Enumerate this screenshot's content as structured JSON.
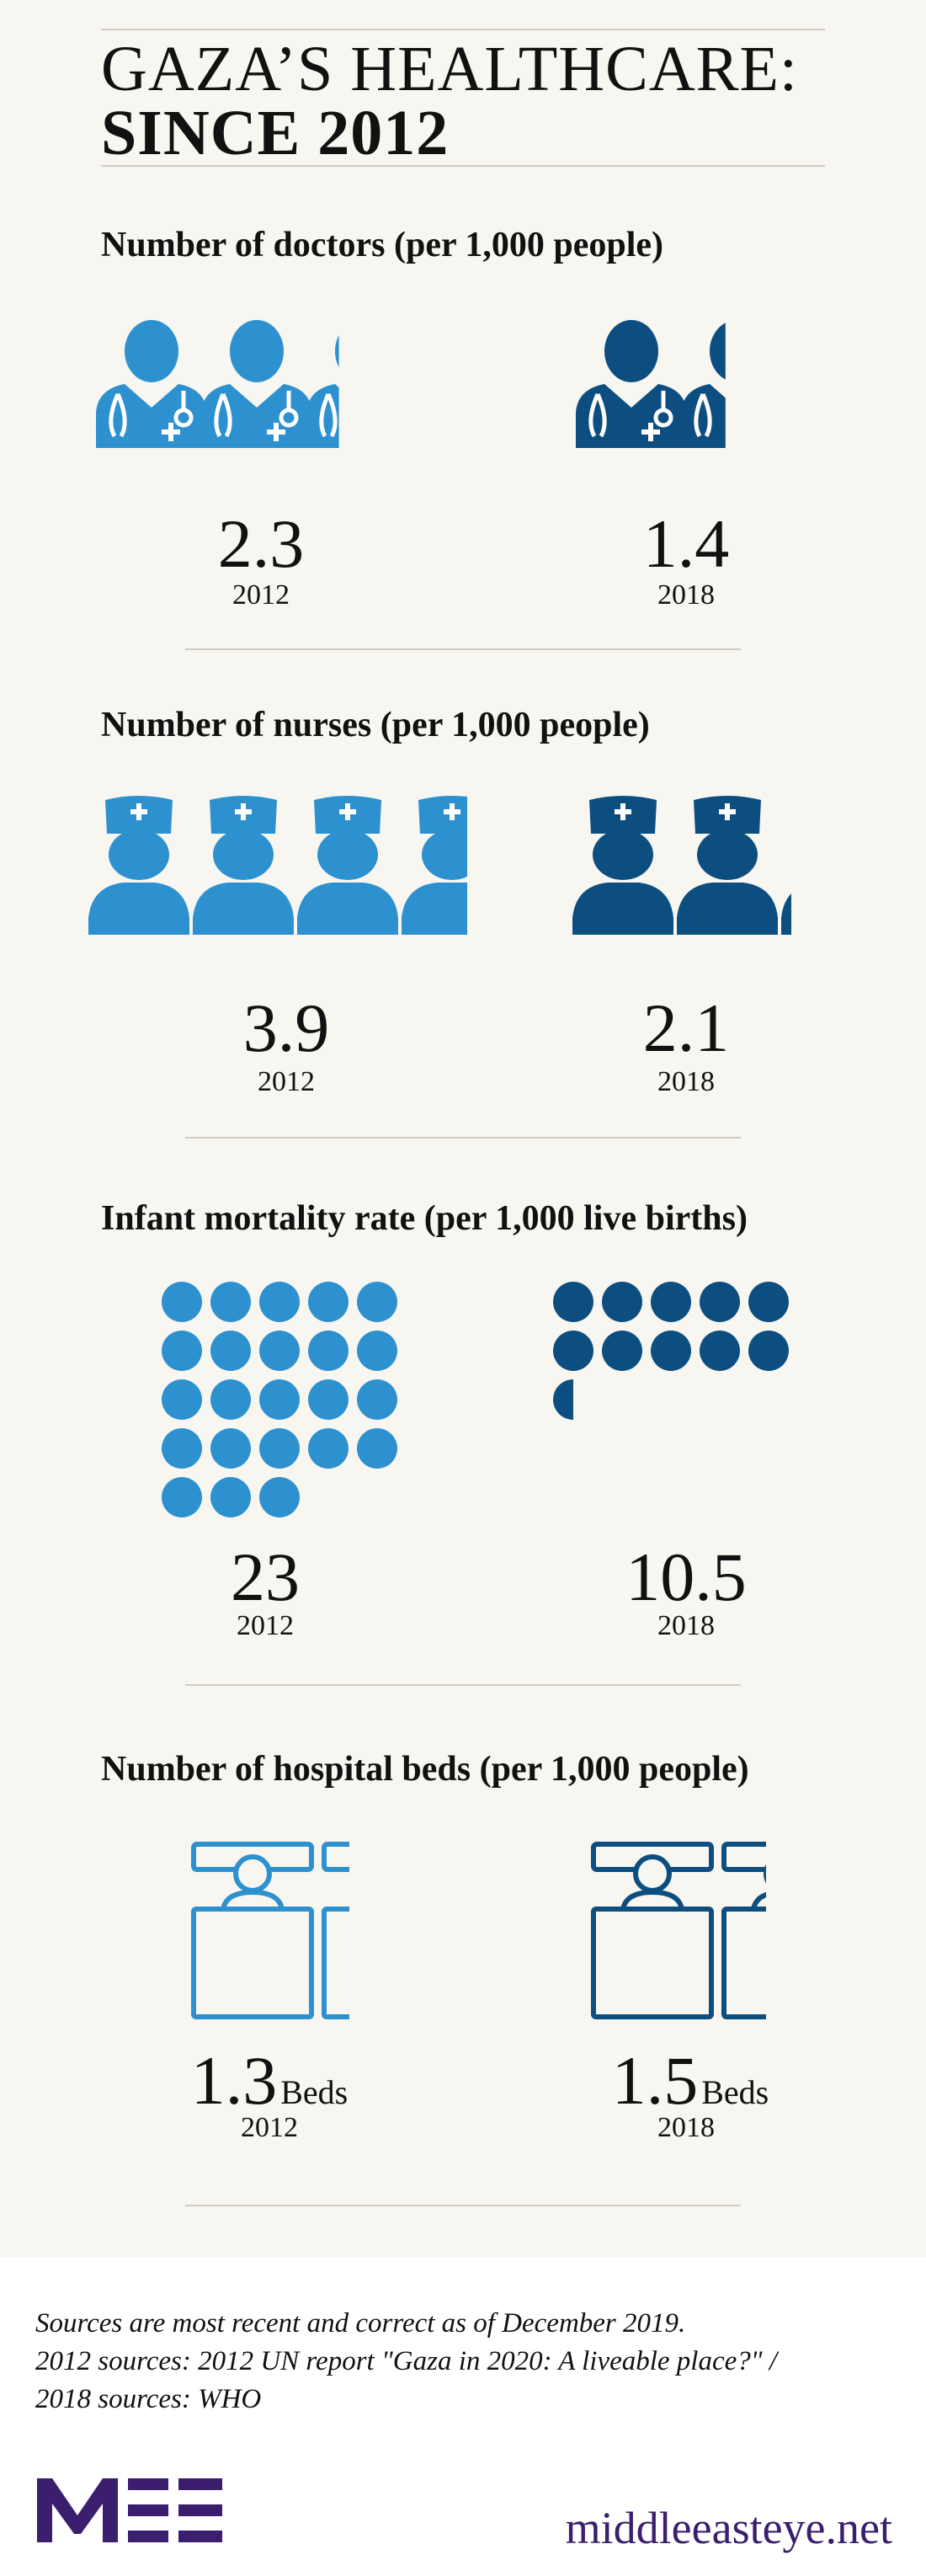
{
  "title": {
    "line1": "GAZA’S HEALTHCARE:",
    "line2": "SINCE 2012"
  },
  "colors": {
    "light": "#2d91cf",
    "dark": "#0d4e80",
    "brand": "#3b1e6e"
  },
  "chart_data": [
    {
      "type": "pictogram",
      "title": "Number of doctors (per 1,000 people)",
      "icon": "doctor-icon",
      "series": [
        {
          "year": "2012",
          "value": 2.3,
          "label": "2.3"
        },
        {
          "year": "2018",
          "value": 1.4,
          "label": "1.4"
        }
      ]
    },
    {
      "type": "pictogram",
      "title": "Number of nurses (per 1,000 people)",
      "icon": "nurse-icon",
      "series": [
        {
          "year": "2012",
          "value": 3.9,
          "label": "3.9"
        },
        {
          "year": "2018",
          "value": 2.1,
          "label": "2.1"
        }
      ]
    },
    {
      "type": "pictogram",
      "title": "Infant mortality rate (per 1,000 live births)",
      "icon": "dot-icon",
      "series": [
        {
          "year": "2012",
          "value": 23,
          "label": "23"
        },
        {
          "year": "2018",
          "value": 10.5,
          "label": "10.5"
        }
      ]
    },
    {
      "type": "pictogram",
      "title": "Number of hospital beds (per 1,000 people)",
      "icon": "bed-icon",
      "unit": "Beds",
      "series": [
        {
          "year": "2012",
          "value": 1.3,
          "label": "1.3"
        },
        {
          "year": "2018",
          "value": 1.5,
          "label": "1.5"
        }
      ]
    }
  ],
  "footer": {
    "line1": "Sources are most recent and correct as of December 2019.",
    "line2": "2012 sources: 2012 UN report  \"Gaza in 2020: A liveable place?\" /",
    "line3": "2018 sources: WHO",
    "url": "middleeasteye.net"
  }
}
